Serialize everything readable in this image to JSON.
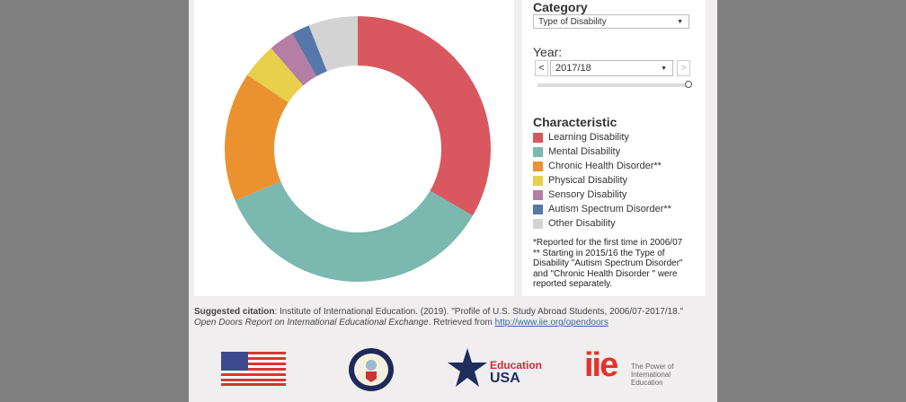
{
  "controls": {
    "category_label": "Category",
    "category_value": "Type of Disability",
    "year_label": "Year:",
    "year_value": "2017/18",
    "prev": "<",
    "next": ">",
    "slider_position": 1.0
  },
  "legend": {
    "title": "Characteristic",
    "items": [
      {
        "label": "Learning Disability",
        "color": "#d9575e"
      },
      {
        "label": "Mental Disability",
        "color": "#7ab8b0"
      },
      {
        "label": "Chronic Health Disorder**",
        "color": "#eb9230"
      },
      {
        "label": "Physical Disability",
        "color": "#e8cf4c"
      },
      {
        "label": "Sensory Disability",
        "color": "#b57ea5"
      },
      {
        "label": "Autism Spectrum Disorder**",
        "color": "#5577aa"
      },
      {
        "label": "Other Disability",
        "color": "#d3d3d3"
      }
    ]
  },
  "notes": [
    "*Reported for the first time in 2006/07",
    "** Starting in 2015/16 the Type of Disability \"Autism Spectrum Disorder\" and \"Chronic Health Disorder \" were reported separately."
  ],
  "chart_data": {
    "type": "pie",
    "donut": true,
    "categories": [
      "Learning Disability",
      "Mental Disability",
      "Chronic Health Disorder**",
      "Physical Disability",
      "Sensory Disability",
      "Autism Spectrum Disorder**",
      "Other Disability"
    ],
    "values": [
      33.4,
      35.3,
      15.8,
      4.3,
      3.1,
      2.2,
      6.0
    ],
    "unit": "percent (estimated)"
  },
  "citation": {
    "bold": "Suggested citation",
    "text": ": Institute of International Education. (2019). \"Profile of U.S. Study Abroad Students, 2006/07-2017/18.\" ",
    "italic": "Open Doors Report on International Educational Exchange",
    "after": ". Retrieved from ",
    "link": "http://www.iie.org/opendoors"
  },
  "logos": {
    "edusa_1": "Education",
    "edusa_2": "USA",
    "iie": "iie",
    "iie_tag": "The Power of International Education"
  }
}
